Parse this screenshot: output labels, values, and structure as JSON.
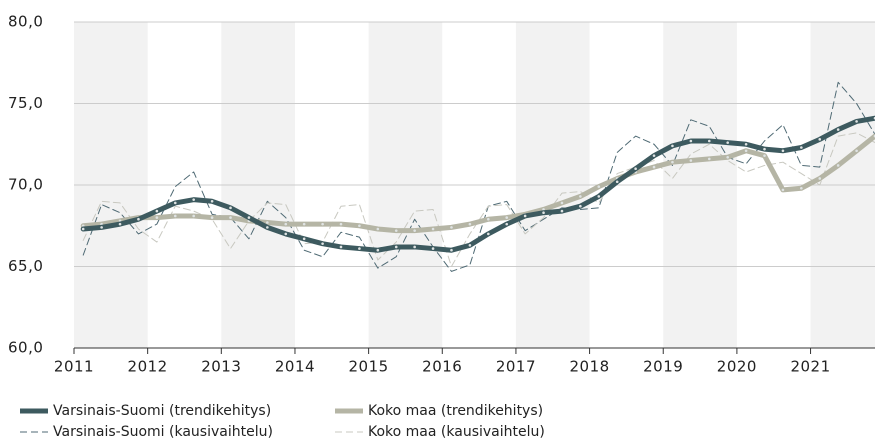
{
  "chart_data": {
    "type": "line",
    "x": [
      2011.125,
      2011.375,
      2011.625,
      2011.875,
      2012.125,
      2012.375,
      2012.625,
      2012.875,
      2013.125,
      2013.375,
      2013.625,
      2013.875,
      2014.125,
      2014.375,
      2014.625,
      2014.875,
      2015.125,
      2015.375,
      2015.625,
      2015.875,
      2016.125,
      2016.375,
      2016.625,
      2016.875,
      2017.125,
      2017.375,
      2017.625,
      2017.875,
      2018.125,
      2018.375,
      2018.625,
      2018.875,
      2019.125,
      2019.375,
      2019.625,
      2019.875,
      2020.125,
      2020.375,
      2020.625,
      2020.875,
      2021.125,
      2021.375,
      2021.625,
      2021.875
    ],
    "series": [
      {
        "name": "Varsinais-Suomi (kausivaihtelu)",
        "color": "#4f6a74",
        "line_width": 1,
        "dashed": true,
        "dots": false,
        "values": [
          65.7,
          68.8,
          68.3,
          67.0,
          67.6,
          69.9,
          70.8,
          68.2,
          68.0,
          66.7,
          69.0,
          68.0,
          66.0,
          65.6,
          67.1,
          66.8,
          64.9,
          65.6,
          67.9,
          66.2,
          64.7,
          65.1,
          68.7,
          69.0,
          67.2,
          67.9,
          68.6,
          68.5,
          68.6,
          72.0,
          73.0,
          72.5,
          71.2,
          74.0,
          73.6,
          71.7,
          71.3,
          72.7,
          73.7,
          71.2,
          71.1,
          76.3,
          75.0,
          73.1
        ]
      },
      {
        "name": "Koko maa (kausivaihtelu)",
        "color": "#c8c8c0",
        "line_width": 1,
        "dashed": true,
        "dots": false,
        "values": [
          66.6,
          69.0,
          68.9,
          67.3,
          66.5,
          68.7,
          68.4,
          67.9,
          66.1,
          67.8,
          68.9,
          68.8,
          66.4,
          66.5,
          68.7,
          68.8,
          65.4,
          66.5,
          68.4,
          68.5,
          65.0,
          67.0,
          68.7,
          68.8,
          67.0,
          68.0,
          69.5,
          69.6,
          68.9,
          70.7,
          71.1,
          71.5,
          70.4,
          71.9,
          72.5,
          71.5,
          70.8,
          71.2,
          71.4,
          70.7,
          70.0,
          73.0,
          73.2,
          72.6
        ]
      },
      {
        "name": "Koko maa (trendikehitys)",
        "color": "#b5b5a5",
        "line_width": 5,
        "dashed": false,
        "dots": true,
        "values": [
          67.5,
          67.6,
          67.8,
          68.0,
          68.0,
          68.1,
          68.1,
          68.0,
          68.0,
          67.8,
          67.7,
          67.6,
          67.6,
          67.6,
          67.6,
          67.5,
          67.3,
          67.2,
          67.2,
          67.3,
          67.4,
          67.6,
          67.9,
          68.0,
          68.2,
          68.5,
          68.9,
          69.3,
          69.9,
          70.4,
          70.8,
          71.1,
          71.4,
          71.5,
          71.6,
          71.7,
          72.1,
          71.8,
          69.7,
          69.8,
          70.4,
          71.2,
          72.1,
          73.0
        ]
      },
      {
        "name": "Varsinais-Suomi (trendikehitys)",
        "color": "#3d5a5f",
        "line_width": 5,
        "dashed": false,
        "dots": true,
        "values": [
          67.3,
          67.4,
          67.6,
          67.9,
          68.4,
          68.9,
          69.1,
          69.0,
          68.6,
          68.0,
          67.4,
          67.0,
          66.7,
          66.4,
          66.2,
          66.1,
          66.0,
          66.2,
          66.2,
          66.1,
          66.0,
          66.3,
          67.0,
          67.6,
          68.1,
          68.3,
          68.4,
          68.7,
          69.3,
          70.2,
          71.0,
          71.8,
          72.4,
          72.7,
          72.7,
          72.6,
          72.5,
          72.2,
          72.1,
          72.3,
          72.8,
          73.4,
          73.9,
          74.1
        ]
      }
    ],
    "xlim": [
      2011,
      2021.875
    ],
    "xticks": [
      2011,
      2012,
      2013,
      2014,
      2015,
      2016,
      2017,
      2018,
      2019,
      2020,
      2021
    ],
    "ylim": [
      60,
      80
    ],
    "yticks": [
      {
        "value": 60,
        "label": "60,0"
      },
      {
        "value": 65,
        "label": "65,0"
      },
      {
        "value": 70,
        "label": "70,0"
      },
      {
        "value": 75,
        "label": "75,0"
      },
      {
        "value": 80,
        "label": "80,0"
      }
    ],
    "grid": true,
    "legend_order": [
      3,
      2,
      0,
      1
    ]
  }
}
